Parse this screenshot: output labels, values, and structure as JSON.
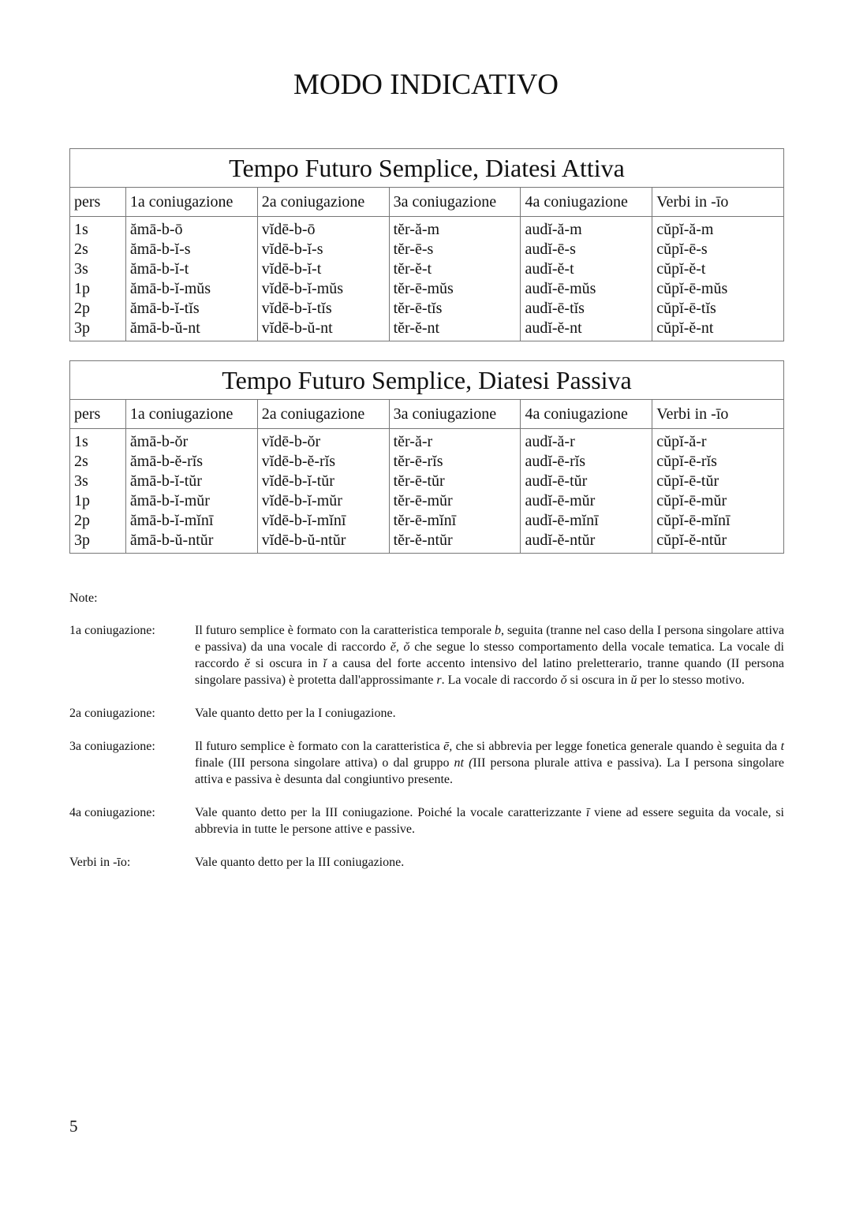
{
  "title": "MODO INDICATIVO",
  "tables": [
    {
      "title": "Tempo Futuro Semplice, Diatesi Attiva",
      "headers": [
        "pers",
        "1a coniugazione",
        "2a coniugazione",
        "3a coniugazione",
        "4a coniugazione",
        "Verbi in -īo"
      ],
      "columns": [
        [
          "1s",
          "2s",
          "3s",
          "1p",
          "2p",
          "3p"
        ],
        [
          "ămā-b-ō",
          "ămā-b-ĭ-s",
          "ămā-b-ĭ-t",
          "ămā-b-ĭ-mŭs",
          "ămā-b-ĭ-tĭs",
          "ămā-b-ŭ-nt"
        ],
        [
          "vĭdē-b-ō",
          "vĭdē-b-ĭ-s",
          "vĭdē-b-ĭ-t",
          "vĭdē-b-ĭ-mŭs",
          "vĭdē-b-ĭ-tĭs",
          "vĭdē-b-ŭ-nt"
        ],
        [
          "tĕr-ă-m",
          "tĕr-ē-s",
          "tĕr-ĕ-t",
          "tĕr-ē-mŭs",
          "tĕr-ē-tĭs",
          "tĕr-ĕ-nt"
        ],
        [
          "audĭ-ă-m",
          "audĭ-ē-s",
          "audĭ-ĕ-t",
          "audĭ-ē-mŭs",
          "audĭ-ē-tĭs",
          "audĭ-ĕ-nt"
        ],
        [
          "cŭpĭ-ă-m",
          "cŭpĭ-ē-s",
          "cŭpĭ-ĕ-t",
          "cŭpĭ-ē-mŭs",
          "cŭpĭ-ē-tĭs",
          "cŭpĭ-ĕ-nt"
        ]
      ]
    },
    {
      "title": "Tempo Futuro Semplice, Diatesi Passiva",
      "headers": [
        "pers",
        "1a coniugazione",
        "2a coniugazione",
        "3a coniugazione",
        "4a coniugazione",
        "Verbi in -īo"
      ],
      "columns": [
        [
          "1s",
          "2s",
          "3s",
          "1p",
          "2p",
          "3p"
        ],
        [
          "ămā-b-ŏr",
          "ămā-b-ĕ-rĭs",
          "ămā-b-ĭ-tŭr",
          "ămā-b-ĭ-mŭr",
          "ămā-b-ĭ-mĭnī",
          "ămā-b-ŭ-ntŭr"
        ],
        [
          "vĭdē-b-ŏr",
          "vĭdē-b-ĕ-rĭs",
          "vĭdē-b-ĭ-tŭr",
          "vĭdē-b-ĭ-mŭr",
          "vĭdē-b-ĭ-mĭnī",
          "vĭdē-b-ŭ-ntŭr"
        ],
        [
          "tĕr-ă-r",
          "tĕr-ē-rĭs",
          "tĕr-ē-tŭr",
          "tĕr-ē-mŭr",
          "tĕr-ē-mĭnī",
          "tĕr-ĕ-ntŭr"
        ],
        [
          "audĭ-ă-r",
          "audĭ-ē-rĭs",
          "audĭ-ē-tŭr",
          "audĭ-ē-mŭr",
          "audĭ-ē-mĭnī",
          "audĭ-ĕ-ntŭr"
        ],
        [
          "cŭpĭ-ă-r",
          "cŭpĭ-ē-rĭs",
          "cŭpĭ-ē-tŭr",
          "cŭpĭ-ē-mŭr",
          "cŭpĭ-ē-mĭnī",
          "cŭpĭ-ĕ-ntŭr"
        ]
      ]
    }
  ],
  "notes": {
    "header": "Note:",
    "items": [
      {
        "label": "1a coniugazione:",
        "segments": [
          {
            "t": "Il futuro semplice è formato con la caratteristica temporale "
          },
          {
            "t": "b",
            "i": true
          },
          {
            "t": ", seguita (tranne nel caso della I persona singolare attiva e passiva) da una vocale di raccordo "
          },
          {
            "t": "ĕ, ŏ",
            "i": true
          },
          {
            "t": " che segue lo stesso comportamento della vocale tematica. La vocale di raccordo "
          },
          {
            "t": "ĕ",
            "i": true
          },
          {
            "t": " si oscura in "
          },
          {
            "t": "ĭ",
            "i": true
          },
          {
            "t": " a causa del forte accento intensivo del latino preletterario, tranne quando (II persona singolare passiva) è protetta dall'approssimante "
          },
          {
            "t": "r",
            "i": true
          },
          {
            "t": ". La vocale di raccordo "
          },
          {
            "t": "ŏ",
            "i": true
          },
          {
            "t": " si oscura in  "
          },
          {
            "t": "ŭ",
            "i": true
          },
          {
            "t": " per lo stesso motivo."
          }
        ]
      },
      {
        "label": "2a coniugazione:",
        "segments": [
          {
            "t": "Vale quanto detto per la I coniugazione."
          }
        ]
      },
      {
        "label": "3a coniugazione:",
        "segments": [
          {
            "t": "Il futuro semplice è formato con la caratteristica "
          },
          {
            "t": "ē,",
            "i": true
          },
          {
            "t": " che si abbrevia per legge fonetica generale quando è seguita da "
          },
          {
            "t": "t",
            "i": true
          },
          {
            "t": " finale (III persona singolare attiva) o dal gruppo "
          },
          {
            "t": "nt (",
            "i": true
          },
          {
            "t": "III persona plurale attiva e passiva). La I persona singolare attiva e passiva è desunta dal congiuntivo presente."
          }
        ]
      },
      {
        "label": "4a coniugazione:",
        "segments": [
          {
            "t": "Vale quanto detto per la III coniugazione. Poiché la vocale caratterizzante "
          },
          {
            "t": "ī",
            "i": true
          },
          {
            "t": " viene ad essere seguita da vocale, si abbrevia in tutte le persone attive e passive."
          }
        ]
      },
      {
        "label": "Verbi in -īo:",
        "segments": [
          {
            "t": "Vale quanto detto per la III coniugazione."
          }
        ]
      }
    ]
  },
  "page_number": "5"
}
